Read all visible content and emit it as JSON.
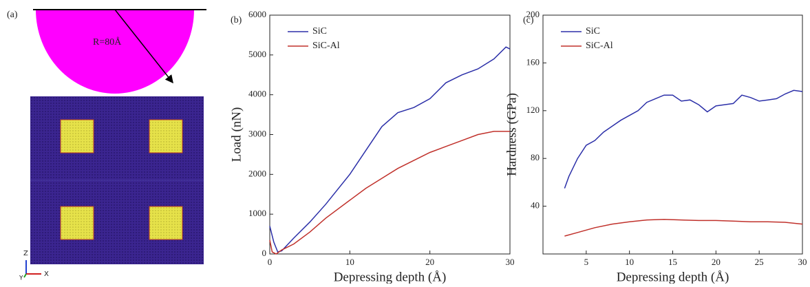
{
  "schematic": {
    "label": "(a)",
    "radius_label": "R=80Å",
    "axis_z": "Z",
    "axis_x": "X",
    "axis_y": "Y"
  },
  "chart_data": [
    {
      "type": "line",
      "panel_label": "(b)",
      "x_label": "Depressing depth (Å)",
      "y_label": "Load (nN)",
      "xlim": [
        0,
        30
      ],
      "xticks": [
        0,
        10,
        20,
        30
      ],
      "ylim": [
        0,
        6000
      ],
      "yticks": [
        0,
        1000,
        2000,
        3000,
        4000,
        5000,
        6000
      ],
      "legend": "upper-left",
      "series": [
        {
          "name": "SiC",
          "color": "#2b2fa8",
          "x": [
            0,
            0.5,
            1,
            1.5,
            3,
            5,
            7,
            10,
            12,
            14,
            16,
            18,
            20,
            22,
            24,
            26,
            28,
            29.5,
            30
          ],
          "values": [
            700,
            300,
            50,
            80,
            400,
            800,
            1250,
            2000,
            2600,
            3200,
            3550,
            3680,
            3900,
            4300,
            4500,
            4650,
            4900,
            5200,
            5150
          ]
        },
        {
          "name": "SiC-Al",
          "color": "#c0302a",
          "x": [
            0,
            0.3,
            0.8,
            1.5,
            3,
            5,
            7,
            10,
            12,
            14,
            16,
            18,
            20,
            22,
            24,
            26,
            28,
            30
          ],
          "values": [
            350,
            50,
            0,
            100,
            250,
            550,
            900,
            1350,
            1650,
            1900,
            2150,
            2350,
            2550,
            2700,
            2850,
            3000,
            3080,
            3080
          ]
        }
      ]
    },
    {
      "type": "line",
      "panel_label": "(c)",
      "x_label": "Depressing depth (Å)",
      "y_label": "Hardness (GPa)",
      "xlim": [
        0,
        30
      ],
      "xticks": [
        5,
        10,
        15,
        20,
        25,
        30
      ],
      "ylim": [
        0,
        200
      ],
      "yticks": [
        40,
        80,
        120,
        160,
        200
      ],
      "legend": "upper-left",
      "series": [
        {
          "name": "SiC",
          "color": "#2b2fa8",
          "x": [
            2.5,
            3,
            4,
            5,
            6,
            7,
            8,
            9,
            10,
            11,
            12,
            13,
            14,
            15,
            16,
            17,
            18,
            19,
            20,
            21,
            22,
            23,
            24,
            25,
            26,
            27,
            28,
            29,
            30
          ],
          "values": [
            55,
            65,
            80,
            91,
            95,
            102,
            107,
            112,
            116,
            120,
            127,
            130,
            133,
            133,
            128,
            129,
            125,
            119,
            124,
            125,
            126,
            133,
            131,
            128,
            129,
            130,
            134,
            137,
            136
          ]
        },
        {
          "name": "SiC-Al",
          "color": "#c0302a",
          "x": [
            2.5,
            4,
            6,
            8,
            10,
            12,
            14,
            16,
            18,
            20,
            22,
            24,
            26,
            28,
            30
          ],
          "values": [
            15,
            18,
            22,
            25,
            27,
            28.5,
            29,
            28.5,
            28,
            28,
            27.5,
            27,
            27,
            26.5,
            25
          ]
        }
      ]
    }
  ]
}
